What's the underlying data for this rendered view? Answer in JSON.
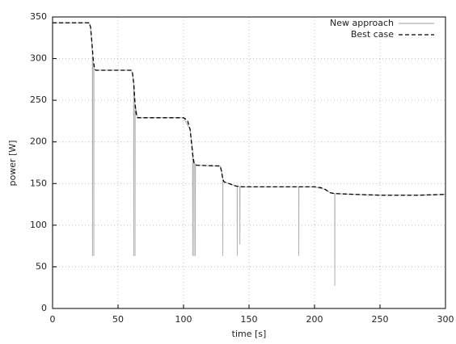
{
  "chart_data": {
    "type": "line",
    "x_label": "time [s]",
    "y_label": "power [W]",
    "xlim": [
      0,
      300
    ],
    "ylim": [
      0,
      350
    ],
    "xticks": [
      0,
      50,
      100,
      150,
      200,
      250,
      300
    ],
    "yticks": [
      0,
      50,
      100,
      150,
      200,
      250,
      300,
      350
    ],
    "grid": true,
    "legend": "top-right",
    "series": [
      {
        "name": "New approach",
        "color": "#b0b0b0",
        "dash": "solid",
        "x": [
          0,
          28,
          29,
          30,
          30.4,
          30.5,
          30.6,
          31.4,
          31.5,
          31.6,
          33,
          60,
          61,
          61.9,
          62,
          62.1,
          62.9,
          63,
          63.1,
          65,
          100,
          105,
          106.9,
          107,
          107.1,
          107.9,
          108,
          108.1,
          108.9,
          109,
          109.1,
          110,
          128,
          129.9,
          130,
          130.1,
          131,
          140,
          140.9,
          141,
          141.1,
          142.9,
          143,
          143.1,
          145,
          187.9,
          188,
          188.1,
          200,
          208,
          212,
          215.4,
          215.5,
          215.6,
          230,
          250,
          280,
          300
        ],
        "values": [
          343,
          343,
          338,
          320,
          305,
          63,
          300,
          290,
          63,
          288,
          286,
          286,
          283,
          271,
          63,
          268,
          247,
          63,
          244,
          229,
          229,
          215,
          190,
          63,
          185,
          176,
          63,
          175,
          173,
          63,
          172,
          172,
          171,
          158,
          63,
          155,
          152,
          147,
          147,
          63,
          147,
          146,
          77,
          146,
          146,
          146,
          63,
          146,
          146,
          143,
          139,
          138,
          27,
          138,
          137,
          136,
          136,
          137
        ]
      },
      {
        "name": "Best case",
        "color": "#000000",
        "dash": "dashed",
        "x": [
          0,
          28,
          29,
          30,
          31,
          32,
          33,
          60,
          61,
          62,
          63,
          64,
          65,
          100,
          103,
          105,
          106,
          107,
          108,
          110,
          128,
          129,
          130,
          131,
          140,
          145,
          200,
          205,
          208,
          212,
          215,
          230,
          250,
          280,
          300
        ],
        "values": [
          343,
          343,
          338,
          320,
          300,
          288,
          286,
          286,
          283,
          270,
          245,
          232,
          229,
          229,
          226,
          215,
          200,
          185,
          175,
          172,
          171,
          165,
          155,
          152,
          147,
          146,
          146,
          145,
          143,
          139,
          138,
          137,
          136,
          136,
          137
        ]
      }
    ]
  }
}
